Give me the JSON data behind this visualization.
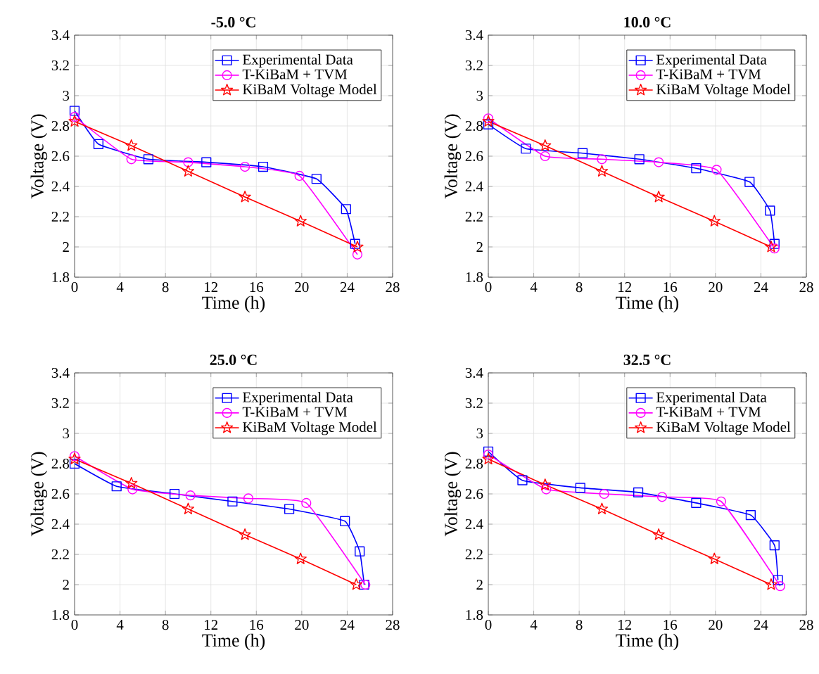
{
  "chart_data": [
    {
      "type": "line",
      "title": "-5.0 °C",
      "xlabel": "Time (h)",
      "ylabel": "Voltage (V)",
      "xlim": [
        0,
        28
      ],
      "ylim": [
        1.8,
        3.4
      ],
      "xticks": [
        0,
        4,
        8,
        12,
        16,
        20,
        24,
        28
      ],
      "yticks": [
        1.8,
        2,
        2.2,
        2.4,
        2.6,
        2.8,
        3,
        3.2,
        3.4
      ],
      "grid": true,
      "legend": "top right",
      "series": [
        {
          "name": "Experimental Data",
          "color": "#0000ff",
          "marker": "square",
          "x": [
            0,
            2.1,
            6.5,
            11.6,
            16.6,
            21.3,
            23.9,
            24.7
          ],
          "values": [
            2.9,
            2.68,
            2.58,
            2.56,
            2.53,
            2.45,
            2.25,
            2.02
          ]
        },
        {
          "name": "T-KiBaM + TVM",
          "color": "#ff00ff",
          "marker": "circle",
          "x": [
            0,
            5,
            10,
            15,
            19.8,
            24.9
          ],
          "values": [
            2.86,
            2.58,
            2.56,
            2.53,
            2.47,
            1.95
          ]
        },
        {
          "name": "KiBaM Voltage Model",
          "color": "#ff0000",
          "marker": "star",
          "x": [
            0,
            5,
            10,
            15,
            19.9,
            24.9
          ],
          "values": [
            2.83,
            2.67,
            2.5,
            2.33,
            2.17,
            2.0
          ]
        }
      ]
    },
    {
      "type": "line",
      "title": "10.0 °C",
      "xlabel": "Time (h)",
      "ylabel": "Voltage (V)",
      "xlim": [
        0,
        28
      ],
      "ylim": [
        1.8,
        3.4
      ],
      "xticks": [
        0,
        4,
        8,
        12,
        16,
        20,
        24,
        28
      ],
      "yticks": [
        1.8,
        2,
        2.2,
        2.4,
        2.6,
        2.8,
        3,
        3.2,
        3.4
      ],
      "grid": true,
      "legend": "top right",
      "series": [
        {
          "name": "Experimental Data",
          "color": "#0000ff",
          "marker": "square",
          "x": [
            0,
            3.3,
            8.3,
            13.3,
            18.3,
            23.0,
            24.8,
            25.2
          ],
          "values": [
            2.81,
            2.65,
            2.62,
            2.58,
            2.52,
            2.43,
            2.24,
            2.02
          ]
        },
        {
          "name": "T-KiBaM + TVM",
          "color": "#ff00ff",
          "marker": "circle",
          "x": [
            0,
            5,
            10,
            15,
            20.1,
            25.2
          ],
          "values": [
            2.85,
            2.6,
            2.58,
            2.56,
            2.51,
            1.99
          ]
        },
        {
          "name": "KiBaM Voltage Model",
          "color": "#ff0000",
          "marker": "star",
          "x": [
            0,
            5,
            10,
            15,
            19.9,
            24.9
          ],
          "values": [
            2.83,
            2.67,
            2.5,
            2.33,
            2.17,
            2.0
          ]
        }
      ]
    },
    {
      "type": "line",
      "title": "25.0 °C",
      "xlabel": "Time (h)",
      "ylabel": "Voltage (V)",
      "xlim": [
        0,
        28
      ],
      "ylim": [
        1.8,
        3.4
      ],
      "xticks": [
        0,
        4,
        8,
        12,
        16,
        20,
        24,
        28
      ],
      "yticks": [
        1.8,
        2,
        2.2,
        2.4,
        2.6,
        2.8,
        3,
        3.2,
        3.4
      ],
      "grid": true,
      "legend": "top right",
      "series": [
        {
          "name": "Experimental Data",
          "color": "#0000ff",
          "marker": "square",
          "x": [
            0,
            3.7,
            8.8,
            13.9,
            18.9,
            23.8,
            25.1,
            25.5
          ],
          "values": [
            2.8,
            2.65,
            2.6,
            2.55,
            2.5,
            2.42,
            2.22,
            2.0
          ]
        },
        {
          "name": "T-KiBaM + TVM",
          "color": "#ff00ff",
          "marker": "circle",
          "x": [
            0,
            5.1,
            10.2,
            15.3,
            20.4,
            25.6
          ],
          "values": [
            2.85,
            2.63,
            2.59,
            2.57,
            2.54,
            2.0
          ]
        },
        {
          "name": "KiBaM Voltage Model",
          "color": "#ff0000",
          "marker": "star",
          "x": [
            0,
            5,
            10,
            15,
            19.9,
            24.8
          ],
          "values": [
            2.83,
            2.67,
            2.5,
            2.33,
            2.17,
            2.0
          ]
        }
      ]
    },
    {
      "type": "line",
      "title": "32.5 °C",
      "xlabel": "Time (h)",
      "ylabel": "Voltage (V)",
      "xlim": [
        0,
        28
      ],
      "ylim": [
        1.8,
        3.4
      ],
      "xticks": [
        0,
        4,
        8,
        12,
        16,
        20,
        24,
        28
      ],
      "yticks": [
        1.8,
        2,
        2.2,
        2.4,
        2.6,
        2.8,
        3,
        3.2,
        3.4
      ],
      "grid": true,
      "legend": "top right",
      "series": [
        {
          "name": "Experimental Data",
          "color": "#0000ff",
          "marker": "square",
          "x": [
            0,
            3.0,
            8.1,
            13.2,
            18.3,
            23.1,
            25.2,
            25.5
          ],
          "values": [
            2.88,
            2.69,
            2.64,
            2.61,
            2.54,
            2.46,
            2.26,
            2.03
          ]
        },
        {
          "name": "T-KiBaM + TVM",
          "color": "#ff00ff",
          "marker": "circle",
          "x": [
            0,
            5.1,
            10.2,
            15.3,
            20.5,
            25.7
          ],
          "values": [
            2.86,
            2.63,
            2.6,
            2.58,
            2.55,
            1.99
          ]
        },
        {
          "name": "KiBaM Voltage Model",
          "color": "#ff0000",
          "marker": "star",
          "x": [
            0,
            5,
            10,
            15,
            19.9,
            24.9
          ],
          "values": [
            2.83,
            2.66,
            2.5,
            2.33,
            2.17,
            2.0
          ]
        }
      ]
    }
  ]
}
